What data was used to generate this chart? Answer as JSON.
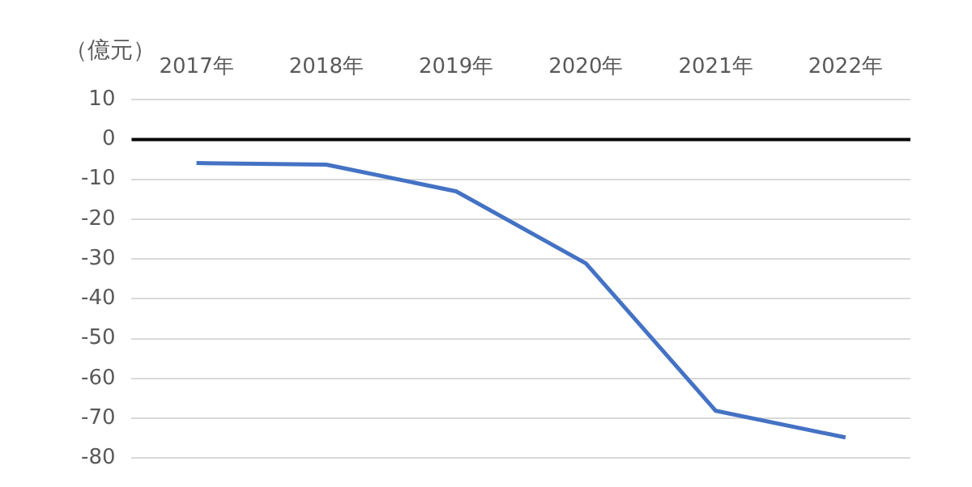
{
  "chart_data": {
    "type": "line",
    "ylabel": "（億元）",
    "categories": [
      "2017年",
      "2018年",
      "2019年",
      "2020年",
      "2021年",
      "2022年"
    ],
    "series": [
      {
        "color": "#4472c4",
        "values": [
          -5.9,
          -6.3,
          -13,
          -31.1,
          -68.1,
          -74.8
        ]
      }
    ],
    "ylim": [
      -80,
      10
    ],
    "yticks": [
      10,
      0,
      -10,
      -20,
      -30,
      -40,
      -50,
      -60,
      -70,
      -80
    ],
    "grid": "y",
    "legend": false,
    "marker": "none",
    "line_style": "solid",
    "ref_lines": [
      {
        "axis": "y",
        "value": 0,
        "color": "#000000"
      }
    ]
  }
}
